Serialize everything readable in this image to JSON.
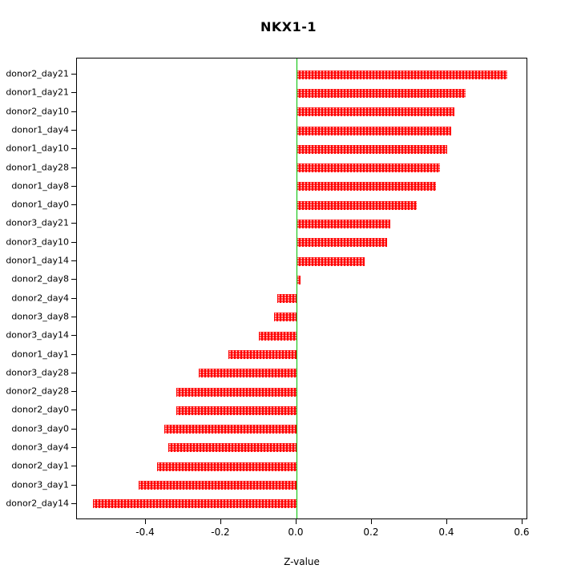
{
  "chart_data": {
    "type": "bar",
    "orientation": "horizontal",
    "title": "NKX1-1",
    "xlabel": "Z-value",
    "ylabel": "",
    "legend": "none",
    "grid": false,
    "categories": [
      "donor2_day21",
      "donor1_day21",
      "donor2_day10",
      "donor1_day4",
      "donor1_day10",
      "donor1_day28",
      "donor1_day8",
      "donor1_day0",
      "donor3_day21",
      "donor3_day10",
      "donor1_day14",
      "donor2_day8",
      "donor2_day4",
      "donor3_day8",
      "donor3_day14",
      "donor1_day1",
      "donor3_day28",
      "donor2_day28",
      "donor2_day0",
      "donor3_day0",
      "donor3_day4",
      "donor2_day1",
      "donor3_day1",
      "donor2_day14"
    ],
    "values": [
      0.56,
      0.45,
      0.42,
      0.41,
      0.4,
      0.38,
      0.37,
      0.32,
      0.25,
      0.24,
      0.18,
      0.01,
      -0.05,
      -0.06,
      -0.1,
      -0.18,
      -0.26,
      -0.32,
      -0.32,
      -0.35,
      -0.34,
      -0.37,
      -0.42,
      -0.54
    ],
    "xlim": [
      -0.583,
      0.615
    ],
    "x_ticks": [
      {
        "label": "-0.4",
        "value": -0.4
      },
      {
        "label": "-0.2",
        "value": -0.2
      },
      {
        "label": "0.0",
        "value": 0.0
      },
      {
        "label": "0.2",
        "value": 0.2
      },
      {
        "label": "0.4",
        "value": 0.4
      },
      {
        "label": "0.6",
        "value": 0.6
      }
    ],
    "colors": {
      "bar": "#ff0000",
      "zero_line": "#00bf00",
      "axis": "#000000",
      "background": "#ffffff"
    }
  }
}
